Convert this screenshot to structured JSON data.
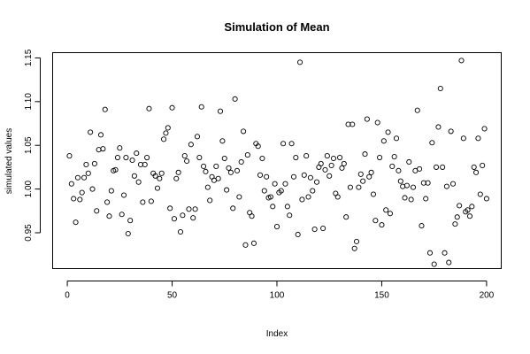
{
  "chart_data": {
    "type": "scatter",
    "title": "Simulation of Mean",
    "xlabel": "Index",
    "ylabel": "simulated values",
    "xlim": [
      -7,
      207
    ],
    "ylim": [
      0.909,
      1.156
    ],
    "xticks": [
      0,
      50,
      100,
      150,
      200
    ],
    "yticks": [
      0.95,
      1.0,
      1.05,
      1.1,
      1.15
    ],
    "xtick_labels": [
      "0",
      "50",
      "100",
      "150",
      "200"
    ],
    "ytick_labels": [
      "0.95",
      "1.00",
      "1.05",
      "1.10",
      "1.15"
    ],
    "grid": false,
    "marker": "open-circle",
    "x": [
      1,
      2,
      3,
      4,
      5,
      6,
      7,
      8,
      9,
      10,
      11,
      12,
      13,
      14,
      15,
      16,
      17,
      18,
      19,
      20,
      21,
      22,
      23,
      24,
      25,
      26,
      27,
      28,
      29,
      30,
      31,
      32,
      33,
      34,
      35,
      36,
      37,
      38,
      39,
      40,
      41,
      42,
      43,
      44,
      45,
      46,
      47,
      48,
      49,
      50,
      51,
      52,
      53,
      54,
      55,
      56,
      57,
      58,
      59,
      60,
      61,
      62,
      63,
      64,
      65,
      66,
      67,
      68,
      69,
      70,
      71,
      72,
      73,
      74,
      75,
      76,
      77,
      78,
      79,
      80,
      81,
      82,
      83,
      84,
      85,
      86,
      87,
      88,
      89,
      90,
      91,
      92,
      93,
      94,
      95,
      96,
      97,
      98,
      99,
      100,
      101,
      102,
      103,
      104,
      105,
      106,
      107,
      108,
      109,
      110,
      111,
      112,
      113,
      114,
      115,
      116,
      117,
      118,
      119,
      120,
      121,
      122,
      123,
      124,
      125,
      126,
      127,
      128,
      129,
      130,
      131,
      132,
      133,
      134,
      135,
      136,
      137,
      138,
      139,
      140,
      141,
      142,
      143,
      144,
      145,
      146,
      147,
      148,
      149,
      150,
      151,
      152,
      153,
      154,
      155,
      156,
      157,
      158,
      159,
      160,
      161,
      162,
      163,
      164,
      165,
      166,
      167,
      168,
      169,
      170,
      171,
      172,
      173,
      174,
      175,
      176,
      177,
      178,
      179,
      180,
      181,
      182,
      183,
      184,
      185,
      186,
      187,
      188,
      189,
      190,
      191,
      192,
      193,
      194,
      195,
      196,
      197,
      198,
      199,
      200
    ],
    "y": [
      1.038,
      1.006,
      0.989,
      0.962,
      1.013,
      0.988,
      0.996,
      1.013,
      1.028,
      1.018,
      1.065,
      1.0,
      1.029,
      0.975,
      1.045,
      1.062,
      1.046,
      1.091,
      0.985,
      0.969,
      0.998,
      1.021,
      1.022,
      1.036,
      1.047,
      0.971,
      0.993,
      1.036,
      0.949,
      0.964,
      1.033,
      1.015,
      1.041,
      1.008,
      1.028,
      0.985,
      1.028,
      1.036,
      1.092,
      0.986,
      1.018,
      1.015,
      1.001,
      1.012,
      1.018,
      1.057,
      1.064,
      1.07,
      0.978,
      1.093,
      0.966,
      1.012,
      1.019,
      0.951,
      0.97,
      1.038,
      1.032,
      0.977,
      1.051,
      0.967,
      0.977,
      1.06,
      1.036,
      1.094,
      1.026,
      1.02,
      1.002,
      0.987,
      1.014,
      1.01,
      1.026,
      1.012,
      1.089,
      1.055,
      1.035,
      0.999,
      1.024,
      1.019,
      0.978,
      1.103,
      1.021,
      0.991,
      1.031,
      1.066,
      0.936,
      1.039,
      0.973,
      0.969,
      0.938,
      1.052,
      1.049,
      1.016,
      1.035,
      0.998,
      1.014,
      0.99,
      0.991,
      0.98,
      1.006,
      0.957,
      0.996,
      0.998,
      1.052,
      1.006,
      0.98,
      0.97,
      1.052,
      1.014,
      1.036,
      0.948,
      1.145,
      0.988,
      1.016,
      1.038,
      0.991,
      1.013,
      0.998,
      0.954,
      1.008,
      1.025,
      1.029,
      0.955,
      1.022,
      1.038,
      1.015,
      1.027,
      1.035,
      0.995,
      0.991,
      1.036,
      1.024,
      1.029,
      0.968,
      1.074,
      1.002,
      1.074,
      0.932,
      0.94,
      1.002,
      1.017,
      1.009,
      1.04,
      1.08,
      1.014,
      1.019,
      0.994,
      0.964,
      1.076,
      1.036,
      0.959,
      1.055,
      0.976,
      1.065,
      0.972,
      1.026,
      1.037,
      1.058,
      1.021,
      1.009,
      1.003,
      0.99,
      1.004,
      1.031,
      0.988,
      1.002,
      1.021,
      1.09,
      1.023,
      0.958,
      1.007,
      0.989,
      1.007,
      0.927,
      1.053,
      0.914,
      1.025,
      1.071,
      1.115,
      1.025,
      0.927,
      1.003,
      0.916,
      1.066,
      1.006,
      0.96,
      0.968,
      0.981,
      1.147,
      1.058,
      0.974,
      0.976,
      0.969,
      0.98,
      1.025,
      1.019,
      1.058,
      0.994,
      1.027,
      1.069,
      0.989
    ]
  }
}
